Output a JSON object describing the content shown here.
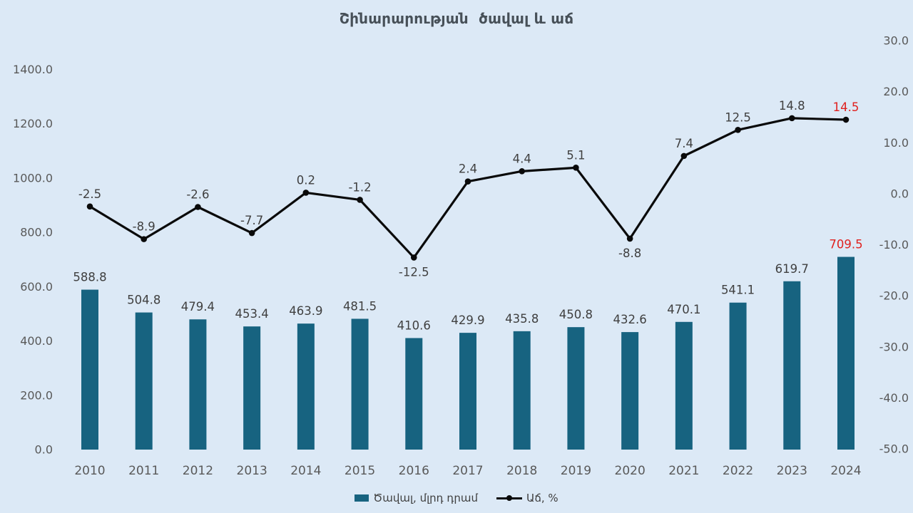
{
  "title": "Շինարարության  ծավալ և աճ",
  "colors": {
    "background": "#dce9f6",
    "bar": "#176380",
    "line": "#0a0a0a",
    "data_label": "#3f3f3f",
    "axis_label": "#595959",
    "title": "#475058",
    "highlight": "#e0211f"
  },
  "legend": {
    "bar_label": "Ծավալ, մլրդ դրամ",
    "line_label": "Աճ, %"
  },
  "chart_data": {
    "type": "bar+line combo",
    "title": "Շինարարության  ծավալ և աճ",
    "categories": [
      "2010",
      "2011",
      "2012",
      "2013",
      "2014",
      "2015",
      "2016",
      "2017",
      "2018",
      "2019",
      "2020",
      "2021",
      "2022",
      "2023",
      "2024"
    ],
    "series": [
      {
        "name": "Ծավալ, մլրդ դրամ",
        "type": "bar",
        "axis": "left",
        "values": [
          588.8,
          504.8,
          479.4,
          453.4,
          463.9,
          481.5,
          410.6,
          429.9,
          435.8,
          450.8,
          432.6,
          470.1,
          541.1,
          619.7,
          709.5
        ]
      },
      {
        "name": "Աճ, %",
        "type": "line",
        "axis": "right",
        "values": [
          -2.5,
          -8.9,
          -2.6,
          -7.7,
          0.2,
          -1.2,
          -12.5,
          2.4,
          4.4,
          5.1,
          -8.8,
          7.4,
          12.5,
          14.8,
          14.5
        ],
        "label_positions": [
          "above",
          "above",
          "above",
          "above",
          "above",
          "above",
          "below",
          "above",
          "above",
          "above",
          "below",
          "above",
          "above",
          "above",
          "above"
        ]
      }
    ],
    "left_axis": {
      "min": 0,
      "max": 1400,
      "step": 200,
      "tick_labels": [
        "0.0",
        "200.0",
        "400.0",
        "600.0",
        "800.0",
        "1000.0",
        "1200.0",
        "1400.0"
      ]
    },
    "right_axis": {
      "min": -50,
      "max": 30,
      "step": 10,
      "tick_labels": [
        "30.0",
        "20.0",
        "10.0",
        "0.0",
        "-10.0",
        "-20.0",
        "-30.0",
        "-40.0",
        "-50.0"
      ]
    },
    "data_labels": true,
    "highlight_last_point": true,
    "grid": false,
    "legend_position": "bottom-center"
  }
}
